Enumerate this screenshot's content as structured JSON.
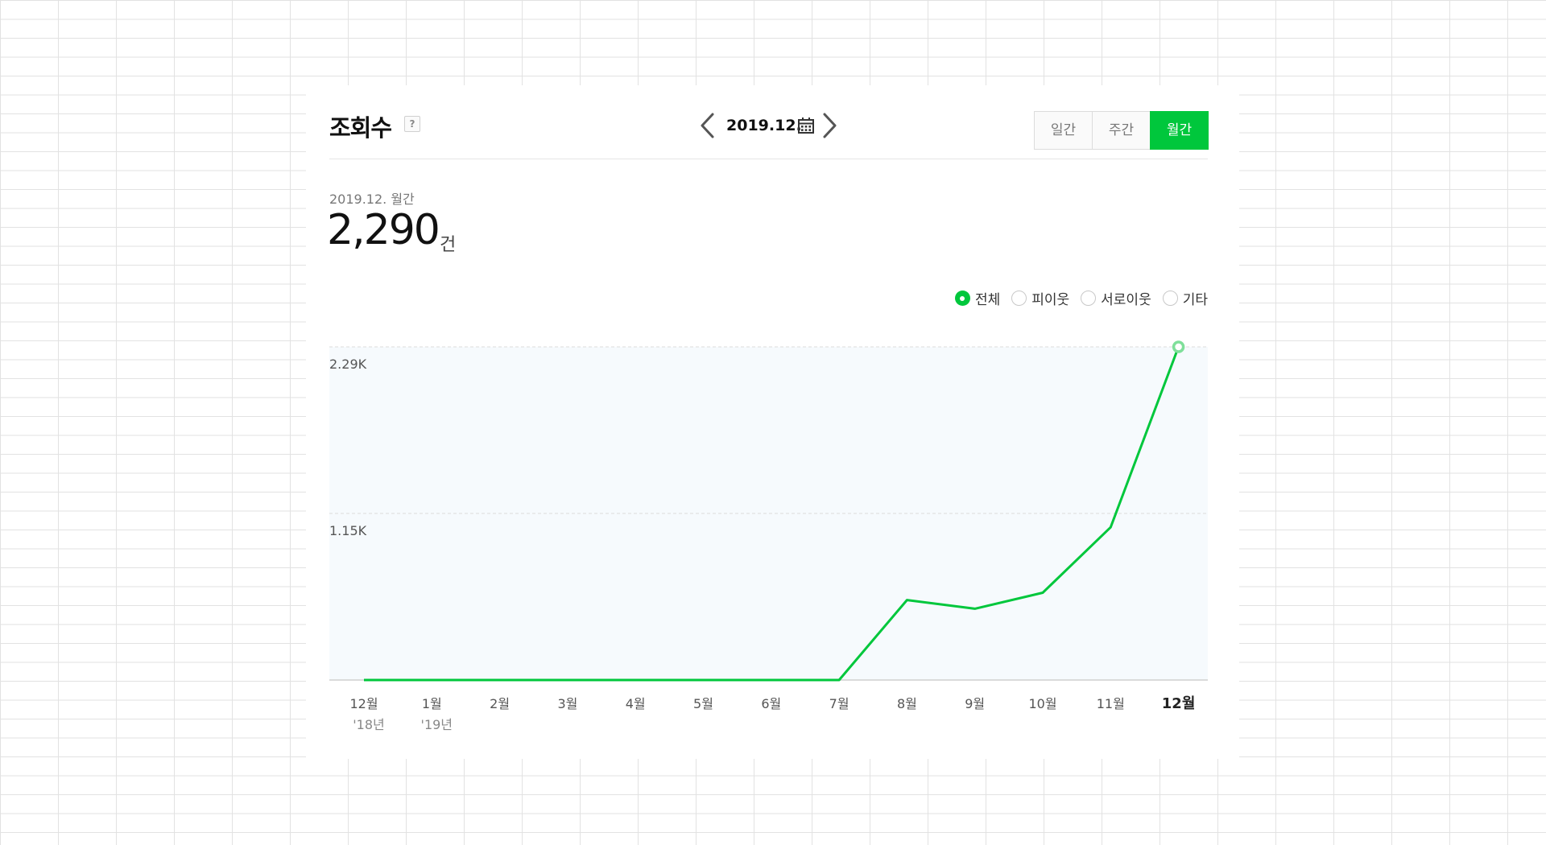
{
  "header": {
    "title": "조회수",
    "help_glyph": "?",
    "date_label": "2019.12.",
    "tabs": [
      {
        "label": "일간",
        "active": false
      },
      {
        "label": "주간",
        "active": false
      },
      {
        "label": "월간",
        "active": true
      }
    ]
  },
  "summary": {
    "period_label": "2019.12. 월간",
    "value": "2,290",
    "unit": "건"
  },
  "legend": [
    {
      "label": "전체",
      "checked": true
    },
    {
      "label": "피이웃",
      "checked": false
    },
    {
      "label": "서로이웃",
      "checked": false
    },
    {
      "label": "기타",
      "checked": false
    }
  ],
  "colors": {
    "accent": "#00c73c",
    "plot_bg": "#f6fafd",
    "end_marker": "#7fdf9a"
  },
  "chart_data": {
    "type": "line",
    "categories": [
      "12월",
      "1월",
      "2월",
      "3월",
      "4월",
      "5월",
      "6월",
      "7월",
      "8월",
      "9월",
      "10월",
      "11월",
      "12월"
    ],
    "year_labels": [
      "'18년",
      "'19년",
      "",
      "",
      "",
      "",
      "",
      "",
      "",
      "",
      "",
      "",
      ""
    ],
    "highlight_index": 12,
    "series": [
      {
        "values": [
          0,
          0,
          0,
          0,
          0,
          0,
          0,
          0,
          550,
          490,
          600,
          1050,
          2290
        ]
      }
    ],
    "y_tick_labels": [
      "1.15K",
      "2.29K"
    ],
    "y_tick_values": [
      1145,
      2290
    ],
    "ylim": [
      0,
      2290
    ],
    "grid": true
  }
}
